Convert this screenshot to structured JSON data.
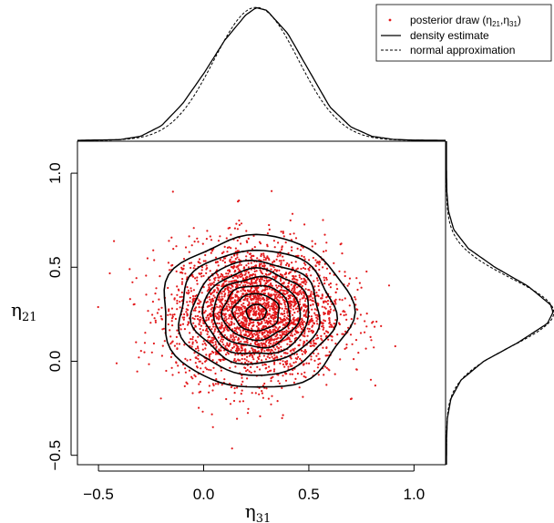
{
  "chart_data": {
    "type": "scatter",
    "x_axis": {
      "label_symbol": "η",
      "label_subscript": "31",
      "range": [
        -0.6,
        1.15
      ],
      "ticks": [
        -0.5,
        0.0,
        0.5,
        1.0
      ],
      "tick_labels": [
        "−0.5",
        "0.0",
        "0.5",
        "1.0"
      ]
    },
    "y_axis": {
      "label_symbol": "η",
      "label_subscript": "21",
      "range": [
        -0.55,
        1.17
      ],
      "ticks": [
        -0.5,
        0.0,
        0.5,
        1.0
      ],
      "tick_labels": [
        "−0.5",
        "0.0",
        "0.5",
        "1.0"
      ]
    },
    "scatter": {
      "name": "posterior draw",
      "color": "#e31a1c",
      "n_points": 3000,
      "mean": [
        0.25,
        0.26
      ],
      "sd": [
        0.2,
        0.18
      ]
    },
    "contour_levels": [
      0.35,
      0.8,
      1.4,
      2.0,
      2.6,
      3.2,
      3.8,
      4.3
    ],
    "marginal_x": {
      "density_estimate": [
        [
          -0.6,
          0.0
        ],
        [
          -0.4,
          0.01
        ],
        [
          -0.3,
          0.06
        ],
        [
          -0.2,
          0.22
        ],
        [
          -0.1,
          0.55
        ],
        [
          0.0,
          1.0
        ],
        [
          0.1,
          1.5
        ],
        [
          0.2,
          1.88
        ],
        [
          0.25,
          1.99
        ],
        [
          0.3,
          1.95
        ],
        [
          0.4,
          1.6
        ],
        [
          0.5,
          1.05
        ],
        [
          0.6,
          0.5
        ],
        [
          0.7,
          0.2
        ],
        [
          0.8,
          0.06
        ],
        [
          0.9,
          0.015
        ],
        [
          1.0,
          0.003
        ],
        [
          1.15,
          0.0
        ]
      ],
      "normal_approximation": {
        "mean": 0.25,
        "sd": 0.2
      }
    },
    "marginal_y": {
      "density_estimate": [
        [
          -0.55,
          0.0
        ],
        [
          -0.4,
          0.003
        ],
        [
          -0.3,
          0.02
        ],
        [
          -0.2,
          0.09
        ],
        [
          -0.1,
          0.3
        ],
        [
          0.0,
          0.77
        ],
        [
          0.1,
          1.48
        ],
        [
          0.2,
          2.08
        ],
        [
          0.26,
          2.2
        ],
        [
          0.3,
          2.15
        ],
        [
          0.4,
          1.68
        ],
        [
          0.5,
          1.0
        ],
        [
          0.6,
          0.45
        ],
        [
          0.7,
          0.15
        ],
        [
          0.8,
          0.04
        ],
        [
          0.9,
          0.008
        ],
        [
          1.0,
          0.001
        ],
        [
          1.17,
          0.0
        ]
      ],
      "normal_approximation": {
        "mean": 0.26,
        "sd": 0.18
      }
    },
    "legend": {
      "position": "top-right",
      "entries": [
        {
          "label": "posterior draw (",
          "sym": "η",
          "s1": "21",
          "s2": "31",
          "style": "point"
        },
        {
          "label": "density estimate",
          "style": "solid"
        },
        {
          "label": "normal approximation",
          "style": "dashed"
        }
      ]
    }
  }
}
